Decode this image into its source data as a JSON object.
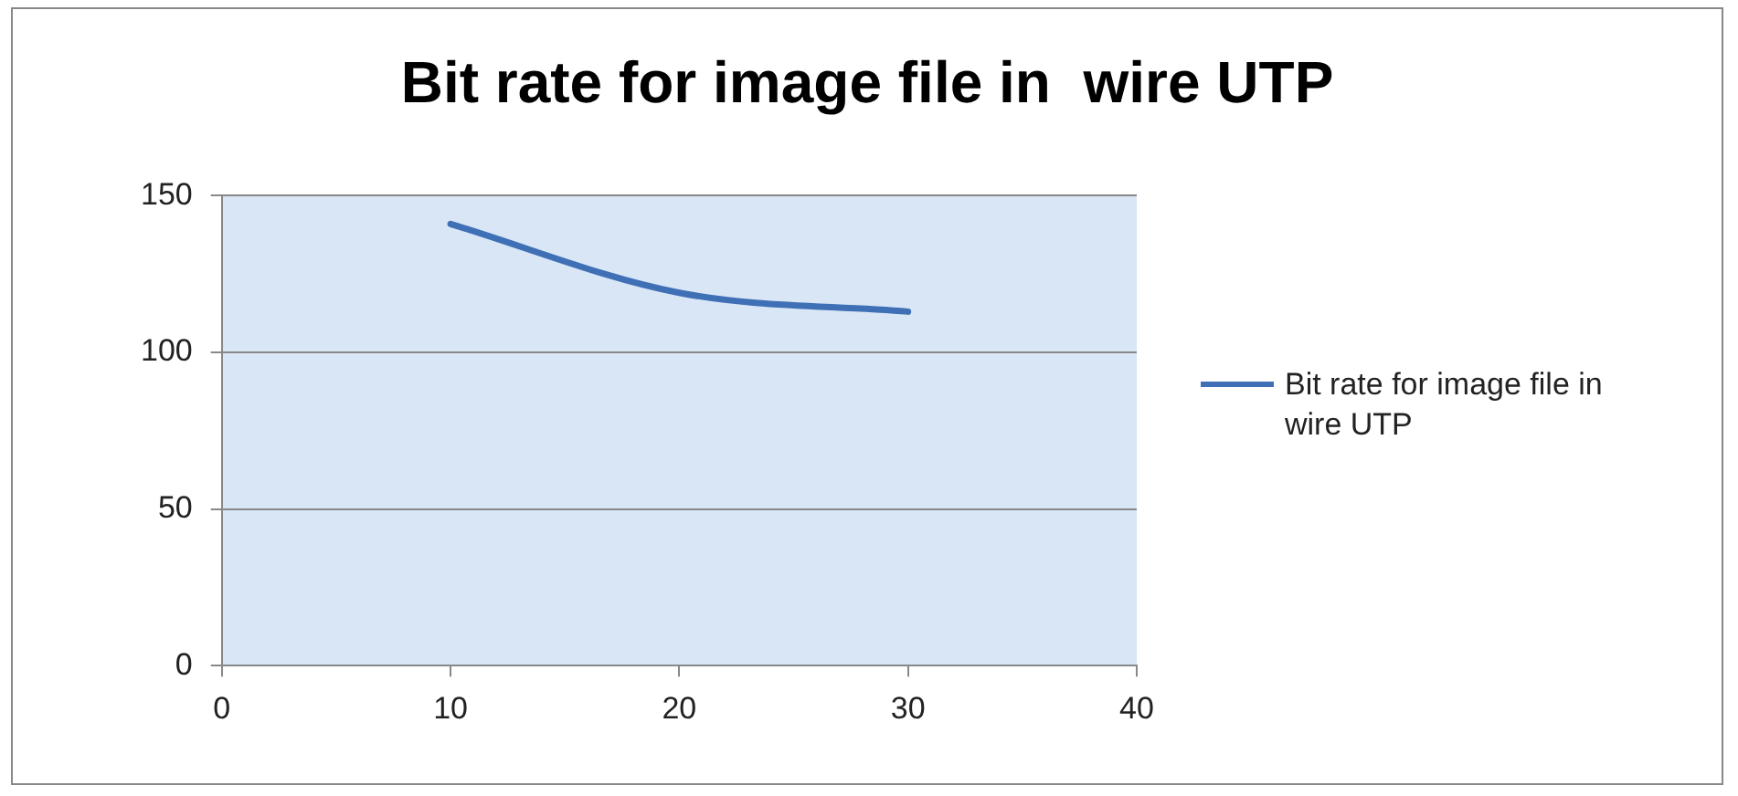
{
  "chart_data": {
    "type": "line",
    "title": "Bit rate for image file in  wire UTP",
    "x": [
      10,
      20,
      30
    ],
    "series": [
      {
        "name": "Bit rate for image file in  wire UTP",
        "color": "#3f6fb5",
        "values": [
          141,
          119,
          113
        ]
      }
    ],
    "xlim": [
      0,
      40
    ],
    "xticks": [
      0,
      10,
      20,
      30,
      40
    ],
    "ylim": [
      0,
      150
    ],
    "yticks": [
      0,
      50,
      100,
      150
    ],
    "grid": "y",
    "legend": "right",
    "marker": "none",
    "line_style": "solid"
  }
}
